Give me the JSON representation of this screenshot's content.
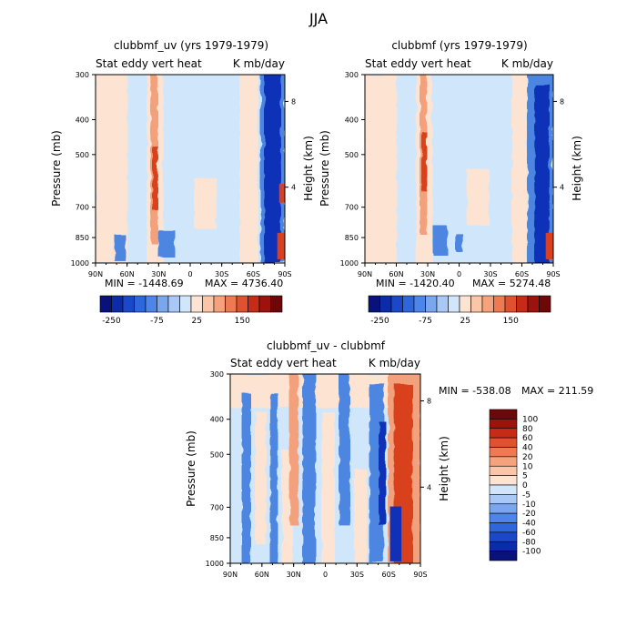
{
  "title": "JJA",
  "colors": {
    "panel_background": "#cfe6fb",
    "positive_light": "#fde3d2",
    "positive_mid": "#f2a17b",
    "positive_strong": "#d9401f",
    "negative_mid": "#4d86e0",
    "negative_strong": "#1030b8"
  },
  "chart_data": [
    {
      "type": "heatmap",
      "title": "clubbmf_uv (yrs 1979-1979)",
      "left_label": "Stat eddy vert heat",
      "right_label": "K mb/day",
      "xlabel": "",
      "ylabel": "Pressure (mb)",
      "y2label": "Height (km)",
      "x_ticks": [
        "90N",
        "60N",
        "30N",
        "0",
        "30S",
        "60S",
        "90S"
      ],
      "y_ticks": [
        "300",
        "400",
        "500",
        "700",
        "850",
        "1000"
      ],
      "y_tick_values": [
        300,
        400,
        500,
        700,
        850,
        1000
      ],
      "y2_ticks": [
        "8",
        "4"
      ],
      "y2_tick_pressures": [
        356,
        616
      ],
      "ylim": [
        1000,
        300
      ],
      "log_scale_y": true,
      "min_label": "MIN = -1448.69",
      "max_label": "MAX = 4736.40",
      "min": -1448.69,
      "max": 4736.4,
      "colorbar": {
        "orientation": "horizontal",
        "colors": [
          "#08127a",
          "#0b2ca6",
          "#1a48c8",
          "#2e66dc",
          "#4d86e8",
          "#7aa6ee",
          "#a9c8f6",
          "#d2e6fb",
          "#fde3d2",
          "#fbc5a8",
          "#f6a27c",
          "#ee7a52",
          "#e0512f",
          "#c52b17",
          "#9c120d",
          "#6e0808"
        ],
        "tick_labels": [
          "-250",
          "-75",
          "25",
          "150"
        ]
      }
    },
    {
      "type": "heatmap",
      "title": "clubbmf (yrs 1979-1979)",
      "left_label": "Stat eddy vert heat",
      "right_label": "K mb/day",
      "xlabel": "",
      "ylabel": "Pressure (mb)",
      "y2label": "Height (km)",
      "x_ticks": [
        "90N",
        "60N",
        "30N",
        "0",
        "30S",
        "60S",
        "90S"
      ],
      "y_ticks": [
        "300",
        "400",
        "500",
        "700",
        "850",
        "1000"
      ],
      "y_tick_values": [
        300,
        400,
        500,
        700,
        850,
        1000
      ],
      "y2_ticks": [
        "8",
        "4"
      ],
      "y2_tick_pressures": [
        356,
        616
      ],
      "ylim": [
        1000,
        300
      ],
      "log_scale_y": true,
      "min_label": "MIN = -1420.40",
      "max_label": "MAX = 5274.48",
      "min": -1420.4,
      "max": 5274.48,
      "colorbar": {
        "orientation": "horizontal",
        "colors": [
          "#08127a",
          "#0b2ca6",
          "#1a48c8",
          "#2e66dc",
          "#4d86e8",
          "#7aa6ee",
          "#a9c8f6",
          "#d2e6fb",
          "#fde3d2",
          "#fbc5a8",
          "#f6a27c",
          "#ee7a52",
          "#e0512f",
          "#c52b17",
          "#9c120d",
          "#6e0808"
        ],
        "tick_labels": [
          "-250",
          "-75",
          "25",
          "150"
        ]
      }
    },
    {
      "type": "heatmap",
      "title": "clubbmf_uv - clubbmf",
      "left_label": "Stat eddy vert heat",
      "right_label": "K mb/day",
      "xlabel": "",
      "ylabel": "Pressure (mb)",
      "y2label": "Height (km)",
      "x_ticks": [
        "90N",
        "60N",
        "30N",
        "0",
        "30S",
        "60S",
        "90S"
      ],
      "y_ticks": [
        "300",
        "400",
        "500",
        "700",
        "850",
        "1000"
      ],
      "y_tick_values": [
        300,
        400,
        500,
        700,
        850,
        1000
      ],
      "y2_ticks": [
        "8",
        "4"
      ],
      "y2_tick_pressures": [
        356,
        616
      ],
      "ylim": [
        1000,
        300
      ],
      "log_scale_y": true,
      "min_label": "MIN = -538.08",
      "max_label": "MAX = 211.59",
      "min": -538.08,
      "max": 211.59,
      "colorbar": {
        "orientation": "vertical",
        "colors": [
          "#08127a",
          "#0b2ca6",
          "#1a48c8",
          "#2e66dc",
          "#4d86e8",
          "#7aa6ee",
          "#a9c8f6",
          "#d2e6fb",
          "#fde3d2",
          "#fbc5a8",
          "#f6a27c",
          "#ee7a52",
          "#e0512f",
          "#c52b17",
          "#9c120d",
          "#6e0808"
        ],
        "tick_labels": [
          "100",
          "80",
          "60",
          "40",
          "20",
          "10",
          "5",
          "0",
          "-5",
          "-10",
          "-20",
          "-40",
          "-60",
          "-80",
          "-100"
        ]
      }
    }
  ]
}
